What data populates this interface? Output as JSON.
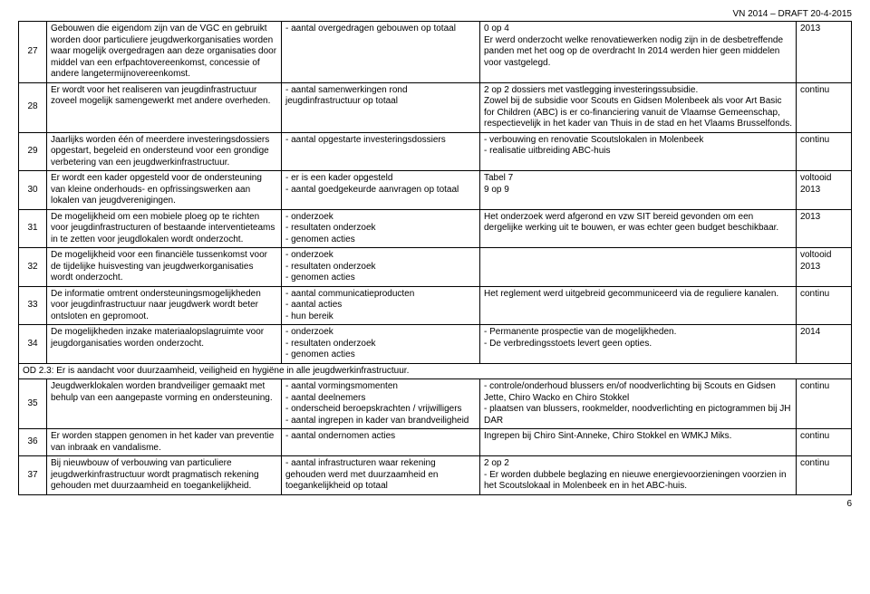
{
  "header": {
    "right": "VN 2014 – DRAFT 20-4-2015"
  },
  "footer": {
    "page": "6"
  },
  "section": {
    "label": "OD 2.3: Er is aandacht voor duurzaamheid, veiligheid en hygiëne in alle jeugdwerkinfrastructuur."
  },
  "rows": [
    {
      "n": "27",
      "c2": "Gebouwen die eigendom zijn van de VGC en gebruikt worden door particuliere jeugdwerkorganisaties worden waar mogelijk overgedragen aan deze organisaties door middel van een erfpachtovereenkomst, concessie of andere langetermijnovereenkomst.",
      "c3": "- aantal overgedragen gebouwen op totaal",
      "c4": " 0 op 4\nEr werd onderzocht welke renovatiewerken nodig zijn in de desbetreffende panden met het oog op de overdracht In 2014 werden hier geen middelen voor vastgelegd.",
      "c5": "2013"
    },
    {
      "n": "28",
      "c2": "Er wordt voor het realiseren van jeugdinfrastructuur zoveel mogelijk samengewerkt met andere overheden.",
      "c3": "- aantal samenwerkingen rond jeugdinfrastructuur op totaal",
      "c4": " 2 op 2 dossiers met vastlegging investeringssubsidie.\nZowel bij de subsidie voor Scouts en Gidsen Molenbeek als voor Art Basic for Children (ABC) is er co-financiering vanuit de Vlaamse Gemeenschap, respectievelijk in het kader van Thuis in de stad en het Vlaams Brusselfonds.",
      "c5": "continu"
    },
    {
      "n": "29",
      "c2": "Jaarlijks worden één of meerdere investeringsdossiers opgestart, begeleid en ondersteund voor een grondige verbetering van een jeugdwerkinfrastructuur.",
      "c3": "- aantal opgestarte investeringsdossiers",
      "c4": "- verbouwing en renovatie Scoutslokalen in Molenbeek\n- realisatie uitbreiding ABC-huis",
      "c5": "continu"
    },
    {
      "n": "30",
      "c2": "Er wordt een kader opgesteld voor de ondersteuning van kleine onderhouds- en opfrissingswerken aan lokalen van jeugdverenigingen.",
      "c3": "- er is een kader opgesteld\n- aantal goedgekeurde aanvragen op totaal",
      "c4": "Tabel 7\n9 op 9",
      "c5": "voltooid\n2013"
    },
    {
      "n": "31",
      "c2": "De mogelijkheid om een mobiele ploeg op te richten voor jeugdinfrastructuren of bestaande interventieteams in te zetten voor jeugdlokalen wordt onderzocht.",
      "c3": "- onderzoek\n- resultaten onderzoek\n- genomen acties",
      "c4": "Het onderzoek werd afgerond en vzw SIT bereid gevonden om een dergelijke werking uit te bouwen, er was echter geen budget beschikbaar.",
      "c5": "2013"
    },
    {
      "n": "32",
      "c2": "De mogelijkheid voor een financiële tussenkomst voor de tijdelijke huisvesting van jeugdwerkorganisaties wordt onderzocht.",
      "c3": "- onderzoek\n- resultaten onderzoek\n- genomen acties",
      "c4": "",
      "c5": "voltooid\n2013"
    },
    {
      "n": "33",
      "c2": "De informatie omtrent ondersteuningsmogelijkheden voor jeugdinfrastructuur naar jeugdwerk wordt beter ontsloten en gepromoot.",
      "c3": "- aantal communicatieproducten\n- aantal acties\n- hun bereik",
      "c4": "Het reglement werd uitgebreid gecommuniceerd via de reguliere kanalen.",
      "c5": "continu"
    },
    {
      "n": "34",
      "c2": "De mogelijkheden inzake materiaalopslagruimte voor jeugdorganisaties worden onderzocht.",
      "c3": "- onderzoek\n- resultaten onderzoek\n- genomen acties",
      "c4": "- Permanente prospectie van de mogelijkheden.\n- De verbredingsstoets levert geen opties.",
      "c5": "2014"
    },
    {
      "n": "35",
      "c2": "Jeugdwerklokalen worden brandveiliger gemaakt met behulp van een aangepaste vorming en ondersteuning.",
      "c3": "- aantal vormingsmomenten\n- aantal deelnemers\n- onderscheid beroepskrachten / vrijwilligers\n- aantal ingrepen in kader van brandveiligheid",
      "c4": "- controle/onderhoud blussers en/of noodverlichting bij Scouts en Gidsen Jette, Chiro Wacko en Chiro Stokkel\n- plaatsen van blussers, rookmelder, noodverlichting en pictogrammen bij JH DAR",
      "c5": "continu"
    },
    {
      "n": "36",
      "c2": "Er worden stappen genomen in het kader van preventie van inbraak en vandalisme.",
      "c3": "- aantal ondernomen acties",
      "c4": "Ingrepen bij Chiro Sint-Anneke, Chiro Stokkel en WMKJ Miks.",
      "c5": "continu"
    },
    {
      "n": "37",
      "c2": "Bij nieuwbouw of verbouwing van particuliere jeugdwerkinfrastructuur wordt pragmatisch rekening gehouden met duurzaamheid en toegankelijkheid.",
      "c3": "- aantal infrastructuren waar rekening gehouden werd met duurzaamheid en toegankelijkheid op totaal",
      "c4": " 2 op 2\n- Er worden dubbele beglazing en nieuwe energievoorzieningen voorzien in het Scoutslokaal in Molenbeek en in het ABC-huis.",
      "c5": "continu"
    }
  ]
}
